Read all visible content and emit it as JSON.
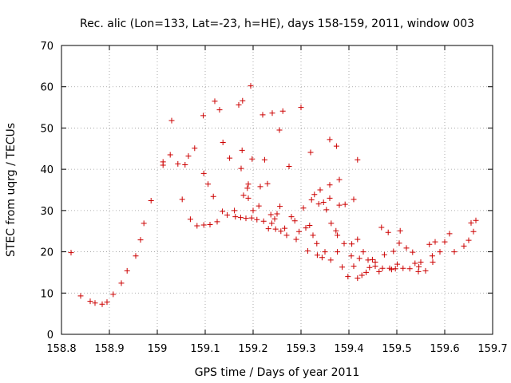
{
  "chart_data": {
    "type": "scatter",
    "title": "Rec. alic (Lon=133, Lat=-23, h=HE), days 158-159, 2011, window 003",
    "xlabel": "GPS time / Days of year 2011",
    "ylabel": "STEC from uqrg / TECUs",
    "xlim": [
      158.8,
      159.7
    ],
    "ylim": [
      0,
      70
    ],
    "xticks": [
      "158.8",
      "158.9",
      "159",
      "159.1",
      "159.2",
      "159.3",
      "159.4",
      "159.5",
      "159.6",
      "159.7"
    ],
    "yticks": [
      "0",
      "10",
      "20",
      "30",
      "40",
      "50",
      "60",
      "70"
    ],
    "grid": true,
    "marker": "+",
    "color": "#cc0000",
    "points": [
      [
        158.82,
        19.8
      ],
      [
        158.84,
        9.3
      ],
      [
        158.86,
        8.0
      ],
      [
        158.87,
        7.6
      ],
      [
        158.885,
        7.3
      ],
      [
        158.895,
        7.8
      ],
      [
        158.908,
        9.7
      ],
      [
        158.925,
        12.4
      ],
      [
        158.937,
        15.4
      ],
      [
        158.955,
        19.0
      ],
      [
        158.965,
        22.9
      ],
      [
        158.972,
        26.9
      ],
      [
        158.987,
        32.4
      ],
      [
        159.012,
        41.0
      ],
      [
        159.012,
        41.8
      ],
      [
        159.027,
        43.5
      ],
      [
        159.043,
        41.3
      ],
      [
        159.052,
        32.7
      ],
      [
        159.058,
        41.1
      ],
      [
        159.065,
        43.2
      ],
      [
        159.069,
        27.9
      ],
      [
        159.078,
        45.1
      ],
      [
        159.083,
        26.3
      ],
      [
        159.097,
        26.5
      ],
      [
        159.097,
        39.0
      ],
      [
        159.106,
        36.4
      ],
      [
        159.11,
        26.6
      ],
      [
        159.117,
        33.4
      ],
      [
        159.125,
        27.3
      ],
      [
        159.136,
        29.8
      ],
      [
        159.137,
        46.5
      ],
      [
        159.146,
        28.9
      ],
      [
        159.151,
        42.7
      ],
      [
        159.161,
        30.0
      ],
      [
        159.163,
        28.5
      ],
      [
        159.174,
        28.3
      ],
      [
        159.175,
        40.2
      ],
      [
        159.177,
        44.6
      ],
      [
        159.18,
        33.7
      ],
      [
        159.185,
        28.1
      ],
      [
        159.188,
        35.4
      ],
      [
        159.19,
        36.4
      ],
      [
        159.197,
        28.2
      ],
      [
        159.198,
        42.5
      ],
      [
        159.208,
        27.8
      ],
      [
        159.212,
        31.1
      ],
      [
        159.215,
        35.8
      ],
      [
        159.222,
        27.4
      ],
      [
        159.224,
        42.3
      ],
      [
        159.23,
        36.5
      ],
      [
        159.232,
        25.6
      ],
      [
        159.237,
        29.0
      ],
      [
        159.239,
        26.9
      ],
      [
        159.247,
        25.5
      ],
      [
        159.25,
        29.2
      ],
      [
        159.256,
        31.0
      ],
      [
        159.266,
        25.7
      ],
      [
        159.275,
        40.7
      ],
      [
        159.28,
        28.5
      ],
      [
        159.287,
        27.5
      ],
      [
        159.296,
        24.9
      ],
      [
        159.305,
        30.6
      ],
      [
        159.31,
        25.8
      ],
      [
        159.314,
        20.2
      ],
      [
        159.318,
        26.4
      ],
      [
        159.322,
        32.6
      ],
      [
        159.328,
        33.9
      ],
      [
        159.334,
        19.2
      ],
      [
        159.337,
        31.6
      ],
      [
        159.344,
        18.6
      ],
      [
        159.347,
        32.0
      ],
      [
        159.353,
        30.2
      ],
      [
        159.36,
        36.2
      ],
      [
        159.363,
        26.9
      ],
      [
        159.373,
        25.1
      ],
      [
        159.376,
        24.0
      ],
      [
        159.38,
        31.3
      ],
      [
        159.386,
        16.3
      ],
      [
        159.392,
        31.5
      ],
      [
        159.398,
        14.0
      ],
      [
        159.406,
        21.9
      ],
      [
        159.41,
        16.5
      ],
      [
        159.418,
        13.6
      ],
      [
        159.422,
        18.4
      ],
      [
        159.427,
        14.3
      ],
      [
        159.436,
        15.0
      ],
      [
        159.443,
        16.2
      ],
      [
        159.449,
        18.1
      ],
      [
        159.455,
        16.5
      ],
      [
        159.463,
        15.2
      ],
      [
        159.468,
        25.9
      ],
      [
        159.474,
        19.3
      ],
      [
        159.482,
        24.7
      ],
      [
        159.489,
        15.7
      ],
      [
        159.493,
        20.1
      ],
      [
        159.497,
        15.9
      ],
      [
        159.505,
        22.1
      ],
      [
        159.507,
        25.1
      ],
      [
        159.513,
        16.0
      ],
      [
        159.52,
        20.9
      ],
      [
        159.527,
        15.9
      ],
      [
        159.533,
        19.9
      ],
      [
        159.538,
        17.2
      ],
      [
        159.546,
        16.4
      ],
      [
        159.55,
        17.5
      ],
      [
        159.56,
        15.4
      ],
      [
        159.568,
        21.8
      ],
      [
        159.574,
        19.0
      ],
      [
        159.58,
        22.4
      ],
      [
        159.6,
        22.4
      ],
      [
        159.61,
        24.4
      ],
      [
        159.62,
        20.0
      ],
      [
        159.64,
        21.4
      ],
      [
        159.65,
        22.8
      ],
      [
        159.66,
        24.9
      ],
      [
        159.665,
        27.6
      ],
      [
        159.655,
        27.0
      ],
      [
        159.59,
        20.0
      ],
      [
        159.575,
        17.5
      ],
      [
        159.545,
        15.2
      ],
      [
        159.501,
        17.0
      ],
      [
        159.485,
        16.0
      ],
      [
        159.47,
        16.0
      ],
      [
        159.455,
        17.5
      ],
      [
        159.44,
        18.0
      ],
      [
        159.43,
        20.0
      ],
      [
        159.418,
        23.0
      ],
      [
        159.405,
        19.0
      ],
      [
        159.39,
        22.0
      ],
      [
        159.376,
        20.0
      ],
      [
        159.362,
        18.0
      ],
      [
        159.35,
        20.0
      ],
      [
        159.333,
        22.0
      ],
      [
        159.325,
        24.0
      ],
      [
        159.29,
        23.0
      ],
      [
        159.27,
        24.0
      ],
      [
        159.258,
        25.0
      ],
      [
        159.245,
        28.0
      ],
      [
        159.2,
        30.0
      ],
      [
        159.19,
        33.0
      ],
      [
        159.03,
        51.8
      ],
      [
        159.096,
        53.0
      ],
      [
        159.12,
        56.5
      ],
      [
        159.13,
        54.4
      ],
      [
        159.17,
        55.6
      ],
      [
        159.178,
        56.6
      ],
      [
        159.195,
        60.2
      ],
      [
        159.22,
        53.2
      ],
      [
        159.24,
        53.6
      ],
      [
        159.255,
        49.5
      ],
      [
        159.262,
        54.1
      ],
      [
        159.3,
        55.0
      ],
      [
        159.32,
        44.1
      ],
      [
        159.36,
        47.2
      ],
      [
        159.374,
        45.6
      ],
      [
        159.418,
        42.3
      ],
      [
        159.41,
        32.7
      ],
      [
        159.38,
        37.5
      ],
      [
        159.36,
        33.0
      ],
      [
        159.34,
        35.0
      ]
    ]
  }
}
